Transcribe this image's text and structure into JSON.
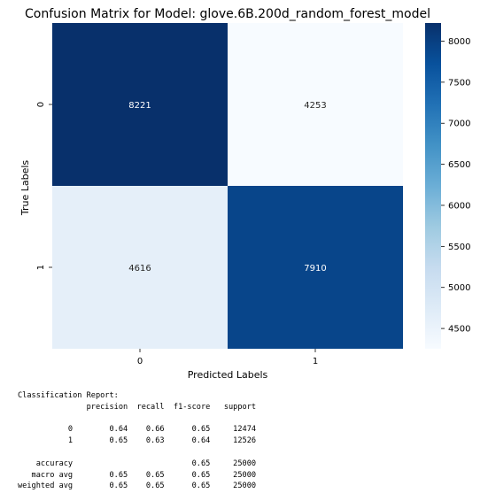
{
  "chart_data": {
    "type": "heatmap",
    "title": "Confusion Matrix for Model: glove.6B.200d_random_forest_model",
    "xlabel": "Predicted Labels",
    "ylabel": "True Labels",
    "x_categories": [
      "0",
      "1"
    ],
    "y_categories": [
      "0",
      "1"
    ],
    "values": [
      [
        8221,
        4253
      ],
      [
        4616,
        7910
      ]
    ],
    "colormap": "Blues",
    "colorbar_range": [
      4253,
      8221
    ],
    "colorbar_ticks": [
      4500,
      5000,
      5500,
      6000,
      6500,
      7000,
      7500,
      8000
    ],
    "annotations": true
  },
  "report": {
    "header": "Classification Report:",
    "columns": [
      "precision",
      "recall",
      "f1-score",
      "support"
    ],
    "rows": [
      {
        "label": "0",
        "values": [
          "0.64",
          "0.66",
          "0.65",
          "12474"
        ]
      },
      {
        "label": "1",
        "values": [
          "0.65",
          "0.63",
          "0.64",
          "12526"
        ]
      }
    ],
    "summary": [
      {
        "label": "accuracy",
        "values": [
          "",
          "",
          "0.65",
          "25000"
        ]
      },
      {
        "label": "macro avg",
        "values": [
          "0.65",
          "0.65",
          "0.65",
          "25000"
        ]
      },
      {
        "label": "weighted avg",
        "values": [
          "0.65",
          "0.65",
          "0.65",
          "25000"
        ]
      }
    ]
  }
}
